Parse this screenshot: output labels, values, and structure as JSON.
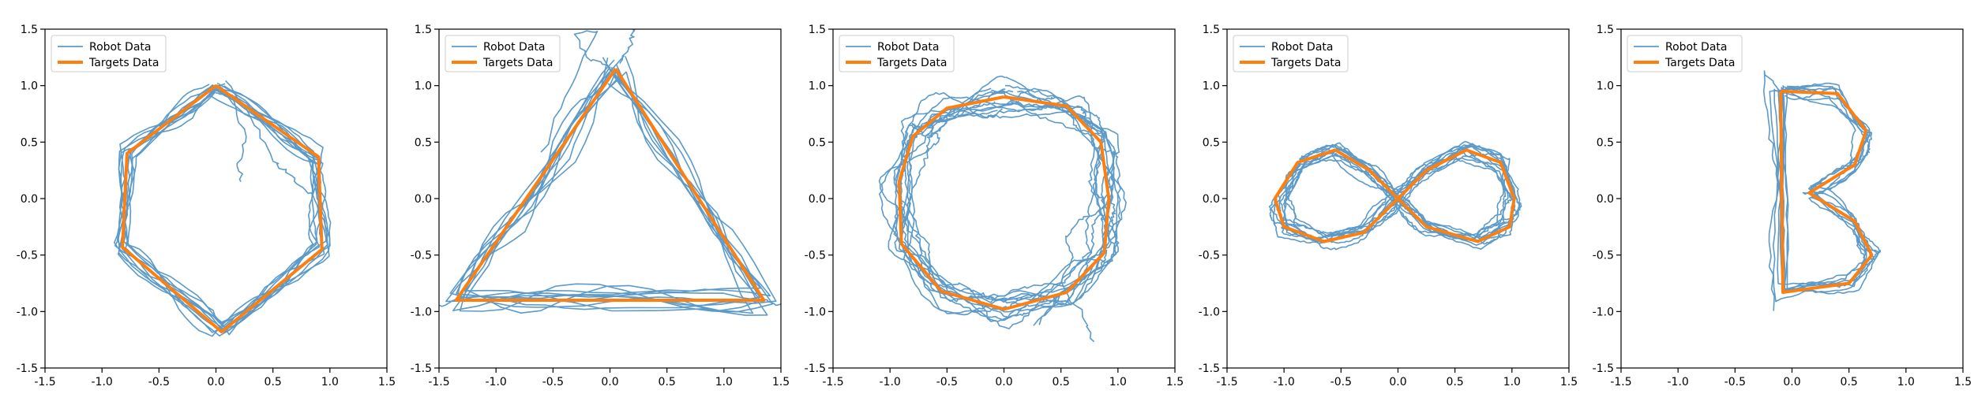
{
  "colors": {
    "robot": "#5b9ac9",
    "target": "#ff7f0e",
    "axes": "#000000",
    "legend_border": "#cccccc",
    "background": "#ffffff"
  },
  "chart_data": [
    {
      "type": "line",
      "shape": "hexagon",
      "xlim": [
        -1.5,
        1.5
      ],
      "ylim": [
        -1.5,
        1.5
      ],
      "xticks": [
        "-1.5",
        "-1.0",
        "-0.5",
        "0.0",
        "0.5",
        "1.0",
        "1.5"
      ],
      "yticks": [
        "-1.5",
        "-1.0",
        "-0.5",
        "0.0",
        "0.5",
        "1.0",
        "1.5"
      ],
      "legend": [
        "Robot Data",
        "Targets Data"
      ],
      "legend_position": "top-left",
      "target": [
        [
          0.0,
          1.0
        ],
        [
          0.9,
          0.37
        ],
        [
          0.93,
          -0.45
        ],
        [
          0.05,
          -1.18
        ],
        [
          -0.82,
          -0.43
        ],
        [
          -0.78,
          0.4
        ],
        [
          0.0,
          1.0
        ]
      ],
      "robot_loops": 10,
      "robot_noise": 0.05,
      "robot_extra": [
        [
          [
            0.0,
            0.95
          ],
          [
            0.15,
            0.9
          ],
          [
            0.25,
            0.55
          ],
          [
            0.2,
            0.3
          ],
          [
            0.22,
            0.15
          ]
        ],
        [
          [
            0.1,
            1.05
          ],
          [
            0.35,
            0.65
          ],
          [
            0.5,
            0.35
          ],
          [
            0.6,
            0.25
          ],
          [
            0.75,
            0.1
          ],
          [
            0.85,
            0.03
          ]
        ]
      ]
    },
    {
      "type": "line",
      "shape": "triangle",
      "xlim": [
        -1.5,
        1.5
      ],
      "ylim": [
        -1.5,
        1.5
      ],
      "xticks": [
        "-1.5",
        "-1.0",
        "-0.5",
        "0.0",
        "0.5",
        "1.0",
        "1.5"
      ],
      "yticks": [
        "-1.5",
        "-1.0",
        "-0.5",
        "0.0",
        "0.5",
        "1.0",
        "1.5"
      ],
      "legend": [
        "Robot Data",
        "Targets Data"
      ],
      "legend_position": "top-left",
      "target": [
        [
          0.05,
          1.15
        ],
        [
          1.35,
          -0.9
        ],
        [
          -1.35,
          -0.9
        ],
        [
          0.05,
          1.15
        ]
      ],
      "robot_loops": 10,
      "robot_noise": 0.06,
      "robot_extra": [
        [
          [
            0.0,
            1.15
          ],
          [
            -0.2,
            1.25
          ],
          [
            -0.3,
            1.45
          ],
          [
            -0.1,
            1.5
          ],
          [
            -0.35,
            1.0
          ],
          [
            -0.6,
            0.4
          ]
        ],
        [
          [
            0.1,
            1.2
          ],
          [
            0.18,
            1.38
          ],
          [
            0.22,
            1.52
          ]
        ],
        [
          [
            -1.3,
            -0.88
          ],
          [
            -1.5,
            -0.95
          ]
        ],
        [
          [
            1.35,
            -0.9
          ],
          [
            1.5,
            -0.95
          ]
        ]
      ]
    },
    {
      "type": "line",
      "shape": "circle",
      "xlim": [
        -1.5,
        1.5
      ],
      "ylim": [
        -1.5,
        1.5
      ],
      "xticks": [
        "-1.5",
        "-1.0",
        "-0.5",
        "0.0",
        "0.5",
        "1.0",
        "1.5"
      ],
      "yticks": [
        "-1.5",
        "-1.0",
        "-0.5",
        "0.0",
        "0.5",
        "1.0",
        "1.5"
      ],
      "legend": [
        "Robot Data",
        "Targets Data"
      ],
      "legend_position": "top-left",
      "target": [
        [
          0.0,
          0.9
        ],
        [
          0.55,
          0.82
        ],
        [
          0.85,
          0.5
        ],
        [
          0.92,
          0.0
        ],
        [
          0.88,
          -0.48
        ],
        [
          0.55,
          -0.83
        ],
        [
          0.0,
          -0.98
        ],
        [
          -0.55,
          -0.82
        ],
        [
          -0.9,
          -0.4
        ],
        [
          -0.92,
          0.15
        ],
        [
          -0.8,
          0.55
        ],
        [
          -0.5,
          0.8
        ],
        [
          0.0,
          0.9
        ]
      ],
      "robot_loops": 12,
      "robot_noise": 0.08,
      "robot_extra": [
        [
          [
            0.85,
            -0.1
          ],
          [
            0.65,
            -0.2
          ],
          [
            0.55,
            -0.35
          ],
          [
            0.6,
            -0.55
          ],
          [
            0.5,
            -0.75
          ],
          [
            0.7,
            -1.05
          ],
          [
            0.78,
            -1.25
          ]
        ],
        [
          [
            0.3,
            -1.1
          ],
          [
            0.5,
            -0.85
          ],
          [
            0.25,
            -1.12
          ]
        ]
      ]
    },
    {
      "type": "line",
      "shape": "infinity",
      "xlim": [
        -1.5,
        1.5
      ],
      "ylim": [
        -1.5,
        1.5
      ],
      "xticks": [
        "-1.5",
        "-1.0",
        "-0.5",
        "0.0",
        "0.5",
        "1.0",
        "1.5"
      ],
      "yticks": [
        "-1.5",
        "-1.0",
        "-0.5",
        "0.0",
        "0.5",
        "1.0",
        "1.5"
      ],
      "legend": [
        "Robot Data",
        "Targets Data"
      ],
      "legend_position": "top-left",
      "target": [
        [
          0.0,
          0.0
        ],
        [
          0.25,
          0.25
        ],
        [
          0.6,
          0.43
        ],
        [
          0.9,
          0.32
        ],
        [
          1.02,
          0.0
        ],
        [
          0.98,
          -0.25
        ],
        [
          0.7,
          -0.38
        ],
        [
          0.25,
          -0.25
        ],
        [
          0.0,
          0.0
        ],
        [
          -0.25,
          0.25
        ],
        [
          -0.55,
          0.43
        ],
        [
          -0.88,
          0.32
        ],
        [
          -1.08,
          0.0
        ],
        [
          -1.0,
          -0.25
        ],
        [
          -0.65,
          -0.38
        ],
        [
          -0.3,
          -0.3
        ],
        [
          0.0,
          0.0
        ]
      ],
      "robot_loops": 10,
      "robot_noise": 0.05,
      "robot_extra": []
    },
    {
      "type": "line",
      "shape": "letter-b",
      "xlim": [
        -1.5,
        1.5
      ],
      "ylim": [
        -1.5,
        1.5
      ],
      "xticks": [
        "-1.5",
        "-1.0",
        "-0.5",
        "0.0",
        "0.5",
        "1.0",
        "1.5"
      ],
      "yticks": [
        "-1.5",
        "-1.0",
        "-0.5",
        "0.0",
        "0.5",
        "1.0",
        "1.5"
      ],
      "legend": [
        "Robot Data",
        "Targets Data"
      ],
      "legend_position": "top-left",
      "target": [
        [
          -0.1,
          0.95
        ],
        [
          0.4,
          0.93
        ],
        [
          0.65,
          0.6
        ],
        [
          0.55,
          0.3
        ],
        [
          0.15,
          0.05
        ],
        [
          0.55,
          -0.2
        ],
        [
          0.7,
          -0.5
        ],
        [
          0.5,
          -0.75
        ],
        [
          -0.08,
          -0.83
        ],
        [
          -0.1,
          0.95
        ]
      ],
      "robot_loops": 8,
      "robot_noise": 0.05,
      "robot_extra": [
        [
          [
            -0.1,
            0.95
          ],
          [
            -0.25,
            1.12
          ],
          [
            -0.2,
            0.6
          ],
          [
            -0.12,
            0.2
          ],
          [
            -0.2,
            -0.4
          ],
          [
            -0.15,
            -0.98
          ]
        ]
      ]
    }
  ]
}
